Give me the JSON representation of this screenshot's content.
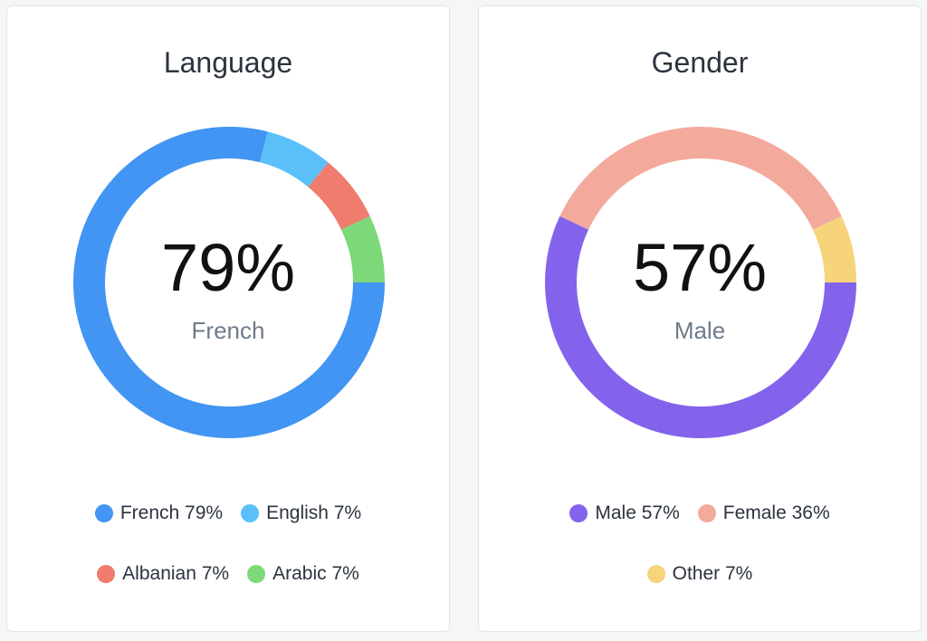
{
  "chart_data": [
    {
      "type": "pie",
      "title": "Language",
      "center": {
        "value": "79%",
        "label": "French"
      },
      "categories": [
        "French",
        "English",
        "Albanian",
        "Arabic"
      ],
      "values": [
        79,
        7,
        7,
        7
      ],
      "colors": [
        "#4295f2",
        "#5bc0fa",
        "#ef7c6d",
        "#7dd87a"
      ],
      "legend": [
        {
          "label": "French 79%",
          "color": "#4295f2"
        },
        {
          "label": "English 7%",
          "color": "#5bc0fa"
        },
        {
          "label": "Albanian 7%",
          "color": "#ef7c6d"
        },
        {
          "label": "Arabic 7%",
          "color": "#7dd87a"
        }
      ],
      "legend_placement": "bottom"
    },
    {
      "type": "pie",
      "title": "Gender",
      "center": {
        "value": "57%",
        "label": "Male"
      },
      "categories": [
        "Male",
        "Female",
        "Other"
      ],
      "values": [
        57,
        36,
        7
      ],
      "colors": [
        "#8363ec",
        "#f3a99c",
        "#f7d37c"
      ],
      "legend": [
        {
          "label": "Male 57%",
          "color": "#8363ec"
        },
        {
          "label": "Female 36%",
          "color": "#f3a99c"
        },
        {
          "label": "Other 7%",
          "color": "#f7d37c"
        }
      ],
      "legend_placement": "bottom"
    }
  ]
}
